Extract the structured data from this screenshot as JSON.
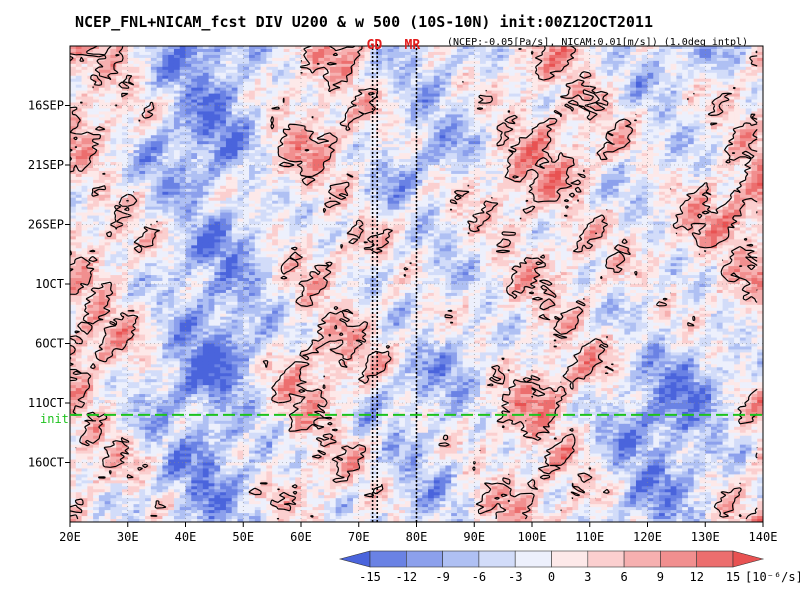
{
  "chart_data": {
    "type": "heatmap",
    "title": "NCEP_FNL+NICAM_fcst DIV U200 & w 500 (10S-10N) init:00Z12OCT2011",
    "subtitle": "(NCEP:-0.05[Pa/s], NICAM:0.01[m/s]) (1.0deg intpl)",
    "x_axis": {
      "range": [
        20,
        140
      ],
      "ticks": [
        20,
        30,
        40,
        50,
        60,
        70,
        80,
        90,
        100,
        110,
        120,
        130,
        140
      ],
      "tick_labels": [
        "20E",
        "30E",
        "40E",
        "50E",
        "60E",
        "70E",
        "80E",
        "90E",
        "100E",
        "110E",
        "120E",
        "130E",
        "140E"
      ]
    },
    "y_axis": {
      "range_days": [
        0,
        40
      ],
      "start_date": "11SEP2011",
      "ticks_days": [
        5,
        10,
        15,
        20,
        25,
        30,
        35
      ],
      "tick_labels": [
        "16SEP",
        "21SEP",
        "26SEP",
        "1OCT",
        "6OCT",
        "11OCT",
        "16OCT"
      ],
      "direction": "downward"
    },
    "init": {
      "label": "init",
      "day": 31
    },
    "sites": [
      {
        "label": "GD",
        "lons": [
          72.4,
          73.2
        ]
      },
      {
        "label": "MR",
        "lons": [
          80.0
        ]
      }
    ],
    "colorbar": {
      "levels": [
        -15,
        -12,
        -9,
        -6,
        -3,
        0,
        3,
        6,
        9,
        12,
        15
      ],
      "labels": [
        "-15",
        "-12",
        "-9",
        "-6",
        "-3",
        "0",
        "3",
        "6",
        "9",
        "12",
        "15"
      ],
      "units": "[10⁻⁶/s]",
      "colors": [
        "#4a64dc",
        "#6a82e4",
        "#8ca0ec",
        "#afc0f3",
        "#d2dcf9",
        "#edf0fc",
        "#fde9e9",
        "#fbcfcf",
        "#f6b0b0",
        "#f18f8f",
        "#ec6e6e",
        "#e85252"
      ]
    },
    "contour_variable": "w 500 (upward motion)"
  }
}
